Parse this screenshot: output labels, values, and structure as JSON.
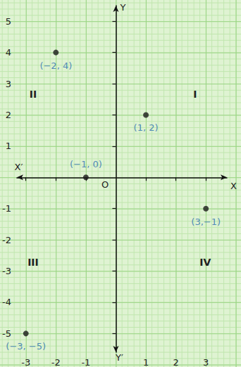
{
  "chart_data": {
    "type": "scatter",
    "xlabel": "X",
    "ylabel": "Y",
    "x": [
      -2,
      1,
      -1,
      3,
      -3
    ],
    "values": [
      4,
      2,
      0,
      -1,
      -5
    ],
    "value_labels": [
      "(−2, 4)",
      "(1, 2)",
      "(−1, 0)",
      "(3,−1)",
      "(−3, −5)"
    ],
    "data_labels": true,
    "color": "#1a1a1a",
    "xlim": [
      -3.3,
      3.7
    ],
    "ylim": [
      -5.6,
      5.5
    ],
    "xticks": [
      -3,
      -2,
      -1,
      1,
      2,
      3
    ],
    "yticks": [
      -5,
      -4,
      -3,
      -2,
      -1,
      1,
      2,
      3,
      4,
      5
    ],
    "grid": true,
    "annotations": [
      {
        "text": "X′",
        "x": -3.24,
        "y": 0.33
      },
      {
        "text": "Y′",
        "x": 0.12,
        "y": -5.78
      },
      {
        "text": "O",
        "x": -0.36,
        "y": -0.22
      },
      {
        "text": "I",
        "x": 2.64,
        "y": 2.67
      },
      {
        "text": "II",
        "x": -2.76,
        "y": 2.67
      },
      {
        "text": "III",
        "x": -2.76,
        "y": -2.71
      },
      {
        "text": "IV",
        "x": 2.98,
        "y": -2.71
      }
    ]
  }
}
